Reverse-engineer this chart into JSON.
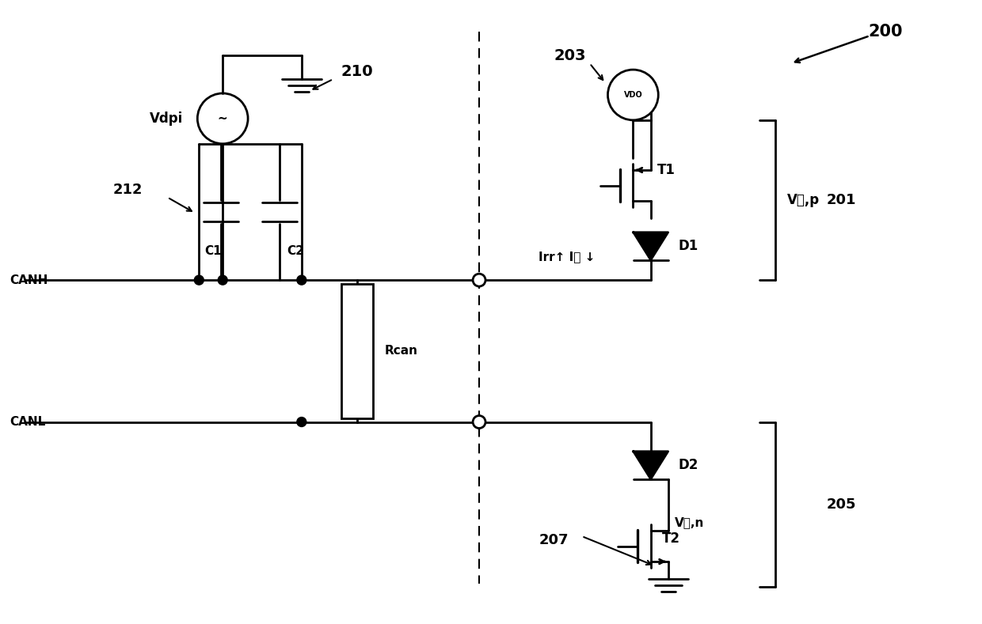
{
  "bg_color": "#ffffff",
  "line_color": "#000000",
  "fig_width": 12.4,
  "fig_height": 7.89,
  "dpi": 100,
  "labels": {
    "title_num": "200",
    "label_210": "210",
    "label_212": "212",
    "label_203": "203",
    "label_201": "201",
    "label_205": "205",
    "label_207": "207",
    "label_canh": "CANH",
    "label_canl": "CANL",
    "label_vdpi": "Vdpi",
    "label_vdo": "VDO",
    "label_c1": "C1",
    "label_c2": "C2",
    "label_rcan": "Rcan",
    "label_t1": "T1",
    "label_t2": "T2",
    "label_d1": "D1",
    "label_d2": "D2",
    "label_irr": "Irr↑ I出 ↓",
    "label_v_out_p": "V出,p",
    "label_v_out_n": "V出,n"
  }
}
